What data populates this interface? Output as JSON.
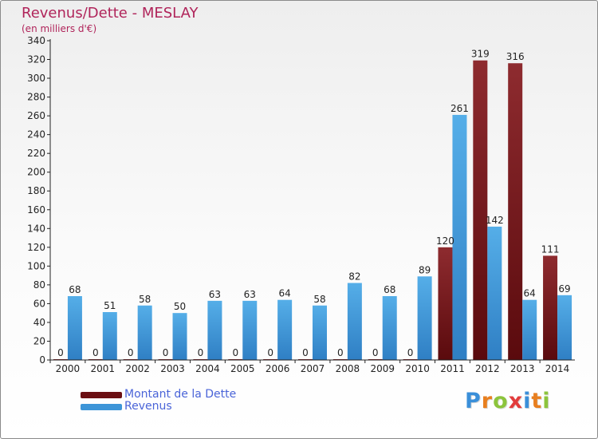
{
  "title": "Revenus/Dette - MESLAY",
  "subtitle": "(en milliers d'€)",
  "logo": {
    "text": "Proxiti",
    "letter_colors": [
      "#3a8fd9",
      "#e87f1f",
      "#8cc43c",
      "#e23c3c",
      "#3a8fd9",
      "#e87f1f",
      "#8cc43c"
    ]
  },
  "colors": {
    "dette": "#7b1f22",
    "revenus": "#3d95d8",
    "axis": "#222222",
    "grid": "#dcdcdc",
    "text": "#222222"
  },
  "legend": [
    {
      "label": "Montant de la Dette",
      "color": "#6b0f12"
    },
    {
      "label": "Revenus",
      "color": "#3d95d8"
    }
  ],
  "chart_data": {
    "type": "bar",
    "categories": [
      "2000",
      "2001",
      "2002",
      "2003",
      "2004",
      "2005",
      "2006",
      "2007",
      "2008",
      "2009",
      "2010",
      "2011",
      "2012",
      "2013",
      "2014"
    ],
    "series": [
      {
        "name": "Montant de la Dette",
        "values": [
          0,
          0,
          0,
          0,
          0,
          0,
          0,
          0,
          0,
          0,
          0,
          120,
          319,
          316,
          111
        ]
      },
      {
        "name": "Revenus",
        "values": [
          68,
          51,
          58,
          50,
          63,
          63,
          64,
          58,
          82,
          68,
          89,
          261,
          142,
          64,
          69
        ]
      }
    ],
    "yticks": [
      0,
      20,
      40,
      60,
      80,
      100,
      120,
      140,
      160,
      180,
      200,
      220,
      240,
      260,
      280,
      300,
      320,
      340
    ],
    "ylim": [
      0,
      340
    ],
    "grid": false,
    "legend_position": "bottom-left"
  }
}
